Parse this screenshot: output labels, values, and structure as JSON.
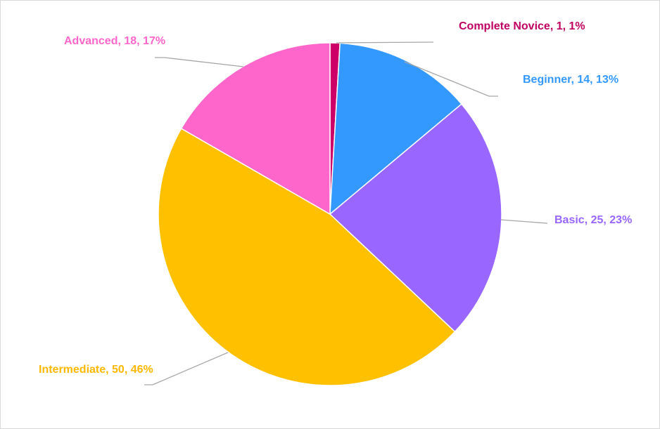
{
  "chart_data": {
    "type": "pie",
    "title": "",
    "slices": [
      {
        "name": "Complete Novice",
        "value": 1,
        "percent": "1%",
        "color": "#cc0066",
        "label": "Complete Novice, 1, 1%"
      },
      {
        "name": "Beginner",
        "value": 14,
        "percent": "13%",
        "color": "#3399ff",
        "label": "Beginner, 14, 13%"
      },
      {
        "name": "Basic",
        "value": 25,
        "percent": "23%",
        "color": "#9966ff",
        "label": "Basic, 25, 23%"
      },
      {
        "name": "Intermediate",
        "value": 50,
        "percent": "46%",
        "color": "#ffc000",
        "label": "Intermediate, 50, 46%"
      },
      {
        "name": "Advanced",
        "value": 18,
        "percent": "17%",
        "color": "#ff66cc",
        "label": "Advanced, 18, 17%"
      }
    ],
    "legend": "none",
    "data_labels": "outside with leader lines"
  }
}
